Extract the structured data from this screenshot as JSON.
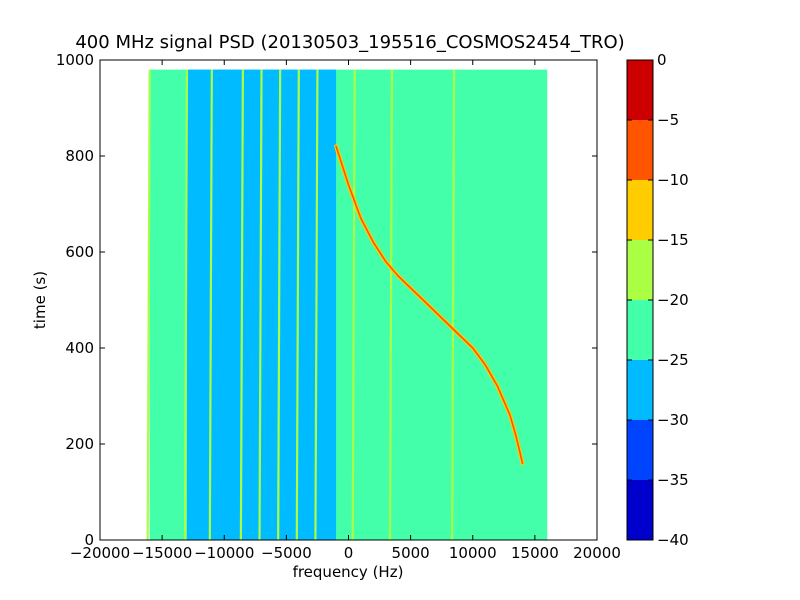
{
  "chart_data": {
    "type": "heatmap",
    "title": "400 MHz signal PSD (20130503_195516_COSMOS2454_TRO)",
    "xlabel": "frequency (Hz)",
    "ylabel": "time (s)",
    "xlim": [
      -20000,
      20000
    ],
    "ylim": [
      0,
      1000
    ],
    "x_ticks": [
      -20000,
      -15000,
      -10000,
      -5000,
      0,
      5000,
      10000,
      15000,
      20000
    ],
    "y_ticks": [
      0,
      200,
      400,
      600,
      800,
      1000
    ],
    "x_tick_labels": [
      "−20000",
      "−15000",
      "−10000",
      "−5000",
      "0",
      "5000",
      "10000",
      "15000",
      "20000"
    ],
    "y_tick_labels": [
      "0",
      "200",
      "400",
      "600",
      "800",
      "1000"
    ],
    "data_extent": {
      "x": [
        -16000,
        16000
      ],
      "y": [
        0,
        980
      ]
    },
    "background_level": -22.5,
    "regions": [
      {
        "x": [
          -13000,
          -1000
        ],
        "level": -27.5,
        "note": "lower-power band"
      }
    ],
    "vertical_lines": [
      {
        "x": -16000,
        "level": -17.5
      },
      {
        "x": -13000,
        "level": -17.5
      },
      {
        "x": -11000,
        "level": -17.5
      },
      {
        "x": -8500,
        "level": -17.5
      },
      {
        "x": -7000,
        "level": -17.5
      },
      {
        "x": -5500,
        "level": -17.5
      },
      {
        "x": -4000,
        "level": -17.5
      },
      {
        "x": -2500,
        "level": -17.5
      },
      {
        "x": 500,
        "level": -17.5
      },
      {
        "x": 3500,
        "level": -17.5
      },
      {
        "x": 8500,
        "level": -17.5
      }
    ],
    "signal_track": {
      "level": -5,
      "points": [
        {
          "x": -1000,
          "y": 820
        },
        {
          "x": 0,
          "y": 740
        },
        {
          "x": 1000,
          "y": 670
        },
        {
          "x": 2000,
          "y": 620
        },
        {
          "x": 3000,
          "y": 580
        },
        {
          "x": 4000,
          "y": 550
        },
        {
          "x": 5000,
          "y": 525
        },
        {
          "x": 6000,
          "y": 500
        },
        {
          "x": 7000,
          "y": 475
        },
        {
          "x": 8000,
          "y": 450
        },
        {
          "x": 9000,
          "y": 425
        },
        {
          "x": 10000,
          "y": 400
        },
        {
          "x": 11000,
          "y": 365
        },
        {
          "x": 12000,
          "y": 320
        },
        {
          "x": 13000,
          "y": 260
        },
        {
          "x": 13500,
          "y": 215
        },
        {
          "x": 14000,
          "y": 160
        }
      ]
    },
    "colorbar": {
      "levels": [
        -40,
        -35,
        -30,
        -25,
        -20,
        -15,
        -10,
        -5,
        0
      ],
      "tick_labels": [
        "−40",
        "−35",
        "−30",
        "−25",
        "−20",
        "−15",
        "−10",
        "−5",
        "0"
      ],
      "colors": [
        "#0000cc",
        "#0044ff",
        "#00bbff",
        "#44ffaa",
        "#aaff44",
        "#ffcc00",
        "#ff5500",
        "#cc0000"
      ]
    }
  }
}
